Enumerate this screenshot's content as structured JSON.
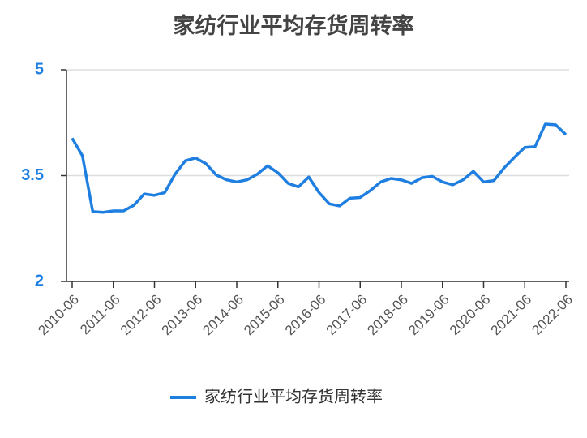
{
  "chart_data": {
    "type": "line",
    "title": "家纺行业平均存货周转率",
    "categories": [
      "2010-06",
      null,
      null,
      null,
      "2011-06",
      null,
      null,
      null,
      "2012-06",
      null,
      null,
      null,
      "2013-06",
      null,
      null,
      null,
      "2014-06",
      null,
      null,
      null,
      "2015-06",
      null,
      null,
      null,
      "2016-06",
      null,
      null,
      null,
      "2017-06",
      null,
      null,
      null,
      "2018-06",
      null,
      null,
      null,
      "2019-06",
      null,
      null,
      null,
      "2020-06",
      null,
      null,
      null,
      "2021-06",
      null,
      null,
      null,
      "2022-06"
    ],
    "series": [
      {
        "name": "家纺行业平均存货周转率",
        "color": "#1f7fe0",
        "values": [
          4.03,
          3.78,
          2.99,
          2.98,
          3.0,
          3.0,
          3.08,
          3.24,
          3.22,
          3.26,
          3.52,
          3.71,
          3.75,
          3.67,
          3.51,
          3.44,
          3.41,
          3.44,
          3.52,
          3.64,
          3.54,
          3.39,
          3.34,
          3.48,
          3.26,
          3.1,
          3.07,
          3.18,
          3.19,
          3.29,
          3.41,
          3.46,
          3.44,
          3.39,
          3.47,
          3.49,
          3.41,
          3.37,
          3.44,
          3.56,
          3.41,
          3.43,
          3.61,
          3.76,
          3.9,
          3.91,
          4.23,
          4.22,
          4.08
        ]
      }
    ],
    "ylim": [
      2,
      5
    ],
    "yticks": [
      2,
      3.5,
      5
    ],
    "grid": true,
    "legend": "bottom"
  }
}
